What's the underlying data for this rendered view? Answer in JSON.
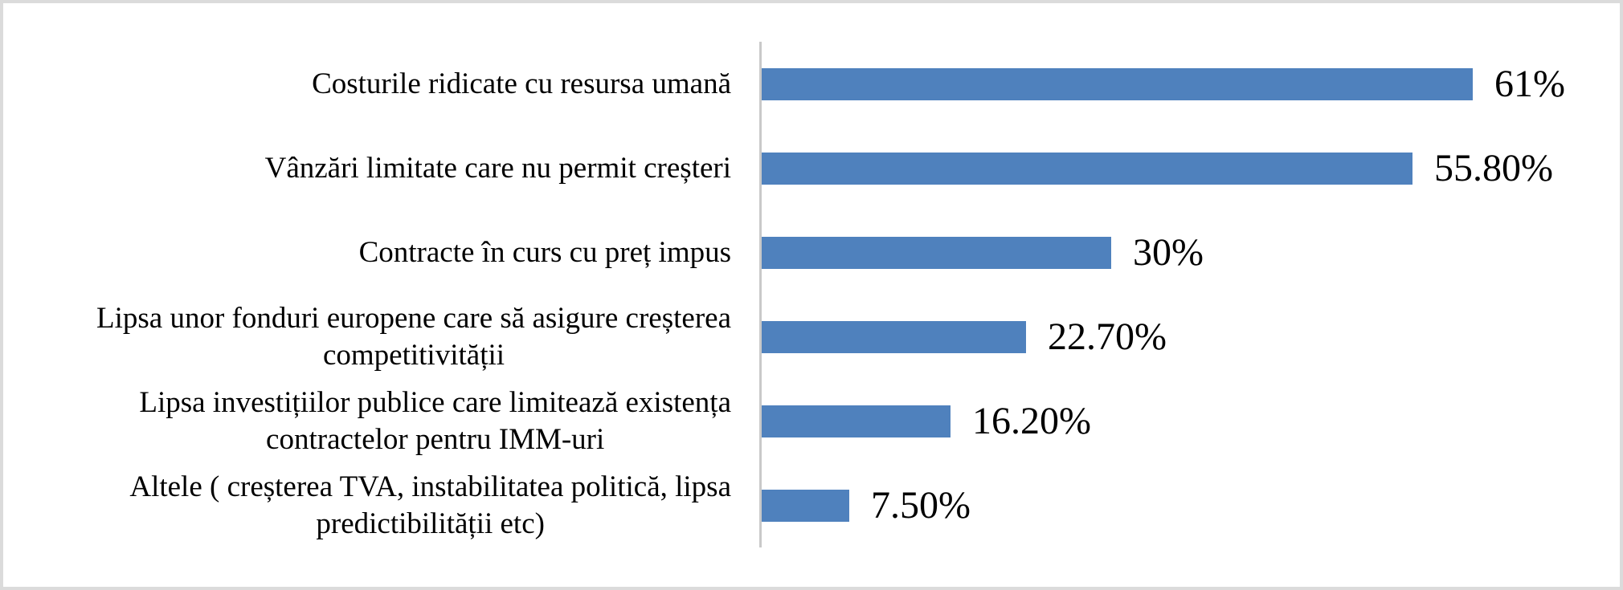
{
  "chart_data": {
    "type": "bar",
    "orientation": "horizontal",
    "title": "",
    "xlabel": "",
    "ylabel": "",
    "xlim": [
      0,
      70
    ],
    "grid": false,
    "legend": false,
    "categories": [
      "Costurile ridicate cu resursa umană",
      "Vânzări limitate care nu permit creșteri",
      "Contracte în curs cu preț impus",
      "Lipsa unor fonduri europene care să asigure creșterea\ncompetitivității",
      "Lipsa investițiilor publice care limitează existența\ncontractelor pentru IMM-uri",
      "Altele ( creșterea TVA, instabilitatea politică, lipsa\npredictibilității etc)"
    ],
    "values": [
      61,
      55.8,
      30,
      22.7,
      16.2,
      7.5
    ],
    "data_labels": [
      "61%",
      "55.80%",
      "30%",
      "22.70%",
      "16.20%",
      "7.50%"
    ],
    "bar_color": "#4F81BD",
    "axis_line_color": "#C9C9C9",
    "border_color": "#DBDBDB",
    "text_color": "#000000",
    "background": "#FFFFFF"
  }
}
